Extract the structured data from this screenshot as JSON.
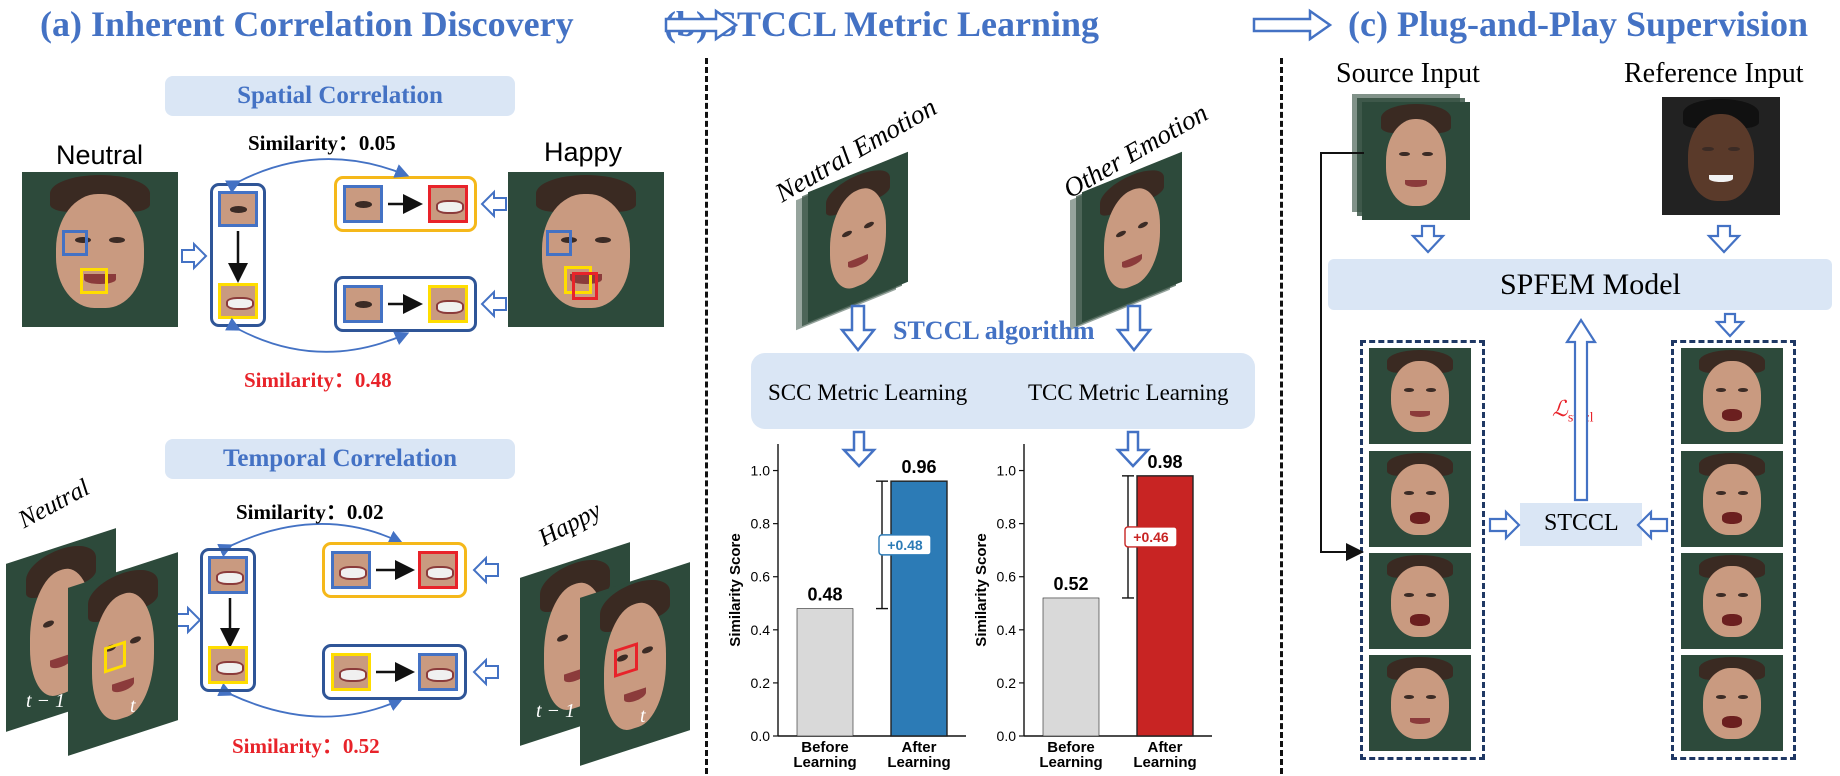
{
  "headers": {
    "a": "(a) Inherent Correlation Discovery",
    "b": "(b) STCCL Metric Learning",
    "c": "(c) Plug-and-Play Supervision"
  },
  "panel_a": {
    "spatial_title": "Spatial Correlation",
    "temporal_title": "Temporal Correlation",
    "neutral": "Neutral",
    "happy": "Happy",
    "neutral_italic": "Neutral",
    "happy_italic": "Happy",
    "t_minus_1": "t − 1",
    "t": "t",
    "spatial_sim_top": "Similarity：0.05",
    "spatial_sim_bottom": "Similarity：0.48",
    "temporal_sim_top": "Similarity：0.02",
    "temporal_sim_bottom": "Similarity：0.52"
  },
  "panel_b": {
    "neutral_emotion": "Neutral Emotion",
    "other_emotion": "Other Emotion",
    "algorithm": "STCCL algorithm",
    "scc": "SCC Metric Learning",
    "tcc": "TCC Metric Learning"
  },
  "panel_c": {
    "source": "Source Input",
    "reference": "Reference Input",
    "model": "SPFEM Model",
    "stccl": "STCCL",
    "loss": "ℒ",
    "loss_sub": "stccl"
  },
  "chart_data": [
    {
      "type": "bar",
      "categories": [
        "Before\nLearning",
        "After\nLearning"
      ],
      "values": [
        0.48,
        0.96
      ],
      "colors": [
        "#d9d9d9",
        "#2c7bb6"
      ],
      "ylabel": "Similarity Score",
      "ylim": [
        0,
        1.1
      ],
      "yticks": [
        "0.0",
        "0.2",
        "0.4",
        "0.6",
        "0.8",
        "1.0"
      ],
      "value_labels": [
        "0.48",
        "0.96"
      ],
      "delta_label": "+0.48",
      "delta_color": "#2c7bb6"
    },
    {
      "type": "bar",
      "categories": [
        "Before\nLearning",
        "After\nLearning"
      ],
      "values": [
        0.52,
        0.98
      ],
      "colors": [
        "#d9d9d9",
        "#c82423"
      ],
      "ylabel": "Similarity Score",
      "ylim": [
        0,
        1.1
      ],
      "yticks": [
        "0.0",
        "0.2",
        "0.4",
        "0.6",
        "0.8",
        "1.0"
      ],
      "value_labels": [
        "0.52",
        "0.98"
      ],
      "delta_label": "+0.46",
      "delta_color": "#c82423"
    }
  ]
}
